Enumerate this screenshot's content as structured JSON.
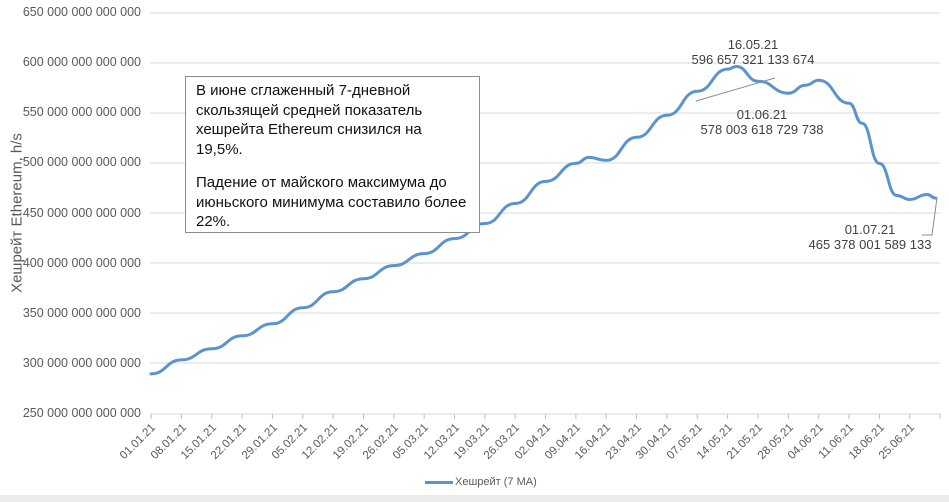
{
  "chart_data": {
    "type": "line",
    "title": "",
    "xlabel": "",
    "ylabel": "Хешрейт Ethereum, h/s",
    "ylim": [
      250000000000000,
      650000000000000
    ],
    "y_ticks": [
      "650 000 000 000 000",
      "600 000 000 000 000",
      "550 000 000 000 000",
      "500 000 000 000 000",
      "450 000 000 000 000",
      "400 000 000 000 000",
      "350 000 000 000 000",
      "300 000 000 000 000",
      "250 000 000 000 000"
    ],
    "x_ticks": [
      "01.01.21",
      "08.01.21",
      "15.01.21",
      "22.01.21",
      "29.01.21",
      "05.02.21",
      "12.02.21",
      "19.02.21",
      "26.02.21",
      "05.03.21",
      "12.03.21",
      "19.03.21",
      "26.03.21",
      "02.04.21",
      "09.04.21",
      "16.04.21",
      "23.04.21",
      "30.04.21",
      "07.05.21",
      "14.05.21",
      "21.05.21",
      "28.05.21",
      "04.06.21",
      "11.06.21",
      "18.06.21",
      "25.06.21"
    ],
    "grid": true,
    "legend_position": "bottom",
    "series": [
      {
        "name": "Хешрейт (7 MA)",
        "color": "#5b94cd",
        "x": [
          "01.01.21",
          "08.01.21",
          "15.01.21",
          "22.01.21",
          "29.01.21",
          "05.02.21",
          "12.02.21",
          "19.02.21",
          "26.02.21",
          "05.03.21",
          "12.03.21",
          "19.03.21",
          "26.03.21",
          "02.04.21",
          "09.04.21",
          "12.04.21",
          "16.04.21",
          "23.04.21",
          "30.04.21",
          "07.05.21",
          "14.05.21",
          "16.05.21",
          "21.05.21",
          "28.05.21",
          "01.06.21",
          "04.06.21",
          "11.06.21",
          "14.06.21",
          "18.06.21",
          "22.06.21",
          "25.06.21",
          "29.06.21",
          "01.07.21"
        ],
        "values": [
          290000000000000,
          304000000000000,
          315000000000000,
          328000000000000,
          340000000000000,
          356000000000000,
          372000000000000,
          385000000000000,
          398000000000000,
          410000000000000,
          425000000000000,
          440000000000000,
          460000000000000,
          482000000000000,
          500000000000000,
          506000000000000,
          503000000000000,
          526000000000000,
          548000000000000,
          572000000000000,
          594000000000000,
          596657321133674,
          582000000000000,
          570000000000000,
          578003618729738,
          583000000000000,
          560000000000000,
          540000000000000,
          500000000000000,
          468000000000000,
          464000000000000,
          469000000000000,
          465378001589133
        ]
      }
    ],
    "annotations": [
      {
        "date": "16.05.21",
        "value": "596 657 321 133 674"
      },
      {
        "date": "01.06.21",
        "value": "578 003 618 729 738"
      },
      {
        "date": "01.07.21",
        "value": "465 378 001 589 133"
      }
    ]
  },
  "note": {
    "paragraph1": "В июне сглаженный 7-дневной скользящей средней показатель хешрейта Ethereum снизился на 19,5%.",
    "paragraph2": "Падение от майского максимума до июньского минимума составило более 22%."
  },
  "legend": {
    "label": "Хешрейт (7 MA)"
  }
}
